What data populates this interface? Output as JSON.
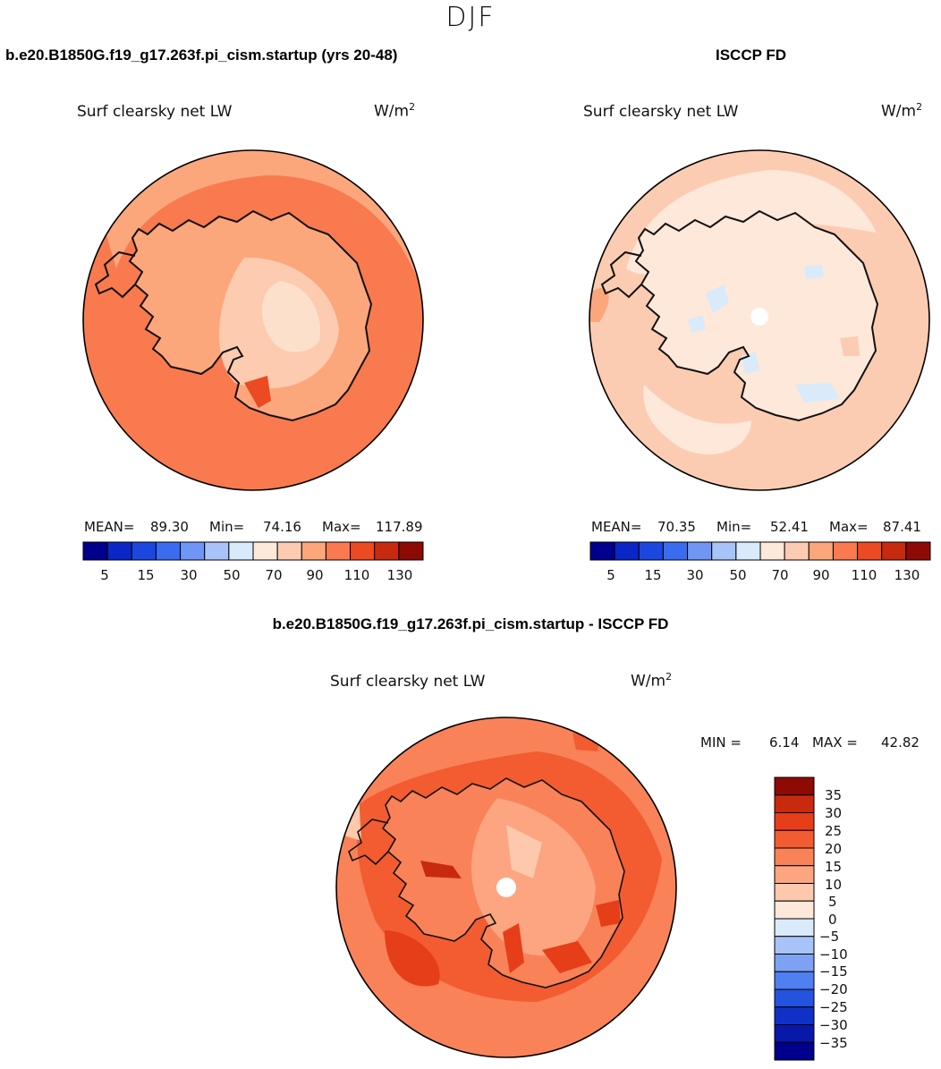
{
  "season": "DJF",
  "panels": [
    {
      "id": "model",
      "title": "b.e20.B1850G.f19_g17.263f.pi_cism.startup (yrs 20-48)",
      "variable": "Surf clearsky net LW",
      "units_base": "W/m",
      "units_exp": "2",
      "stats": {
        "mean_label": "MEAN=",
        "mean": "89.30",
        "min_label": "Min=",
        "min": "74.16",
        "max_label": "Max=",
        "max": "117.89"
      }
    },
    {
      "id": "obs",
      "title": "ISCCP FD",
      "variable": "Surf clearsky net LW",
      "units_base": "W/m",
      "units_exp": "2",
      "stats": {
        "mean_label": "MEAN=",
        "mean": "70.35",
        "min_label": "Min=",
        "min": "52.41",
        "max_label": "Max=",
        "max": "87.41"
      }
    },
    {
      "id": "diff",
      "title": "b.e20.B1850G.f19_g17.263f.pi_cism.startup - ISCCP FD",
      "variable": "Surf clearsky net LW",
      "units_base": "W/m",
      "units_exp": "2",
      "stats": {
        "min_label": "MIN =",
        "min": "6.14",
        "max_label": "MAX =",
        "max": "42.82"
      }
    }
  ],
  "colorbar_abs": {
    "colors": [
      "#00008c",
      "#0a26c8",
      "#1c46e0",
      "#3b6cf0",
      "#6f95f5",
      "#a8c3f7",
      "#d9eafa",
      "#fde8da",
      "#fcccb2",
      "#fca67c",
      "#f87a4e",
      "#ec4a22",
      "#c82a0e",
      "#8e0a04"
    ],
    "tick_labels": [
      "5",
      "15",
      "30",
      "50",
      "70",
      "90",
      "110",
      "130"
    ]
  },
  "colorbar_diff": {
    "colors": [
      "#8e0a04",
      "#c82a0e",
      "#e53e18",
      "#f25c30",
      "#f98258",
      "#fca580",
      "#fdc8ac",
      "#fde8da",
      "#d9eafa",
      "#a8c3f7",
      "#7ea2f3",
      "#4f7ff0",
      "#2453e0",
      "#1030c8",
      "#0818a8",
      "#00008c"
    ],
    "tick_labels": [
      "35",
      "30",
      "25",
      "20",
      "15",
      "10",
      "5",
      "0",
      "−5",
      "−10",
      "−15",
      "−20",
      "−25",
      "−30",
      "−35"
    ]
  },
  "colors": {
    "coast": "#111111",
    "pole_mask": "#ffffff"
  }
}
